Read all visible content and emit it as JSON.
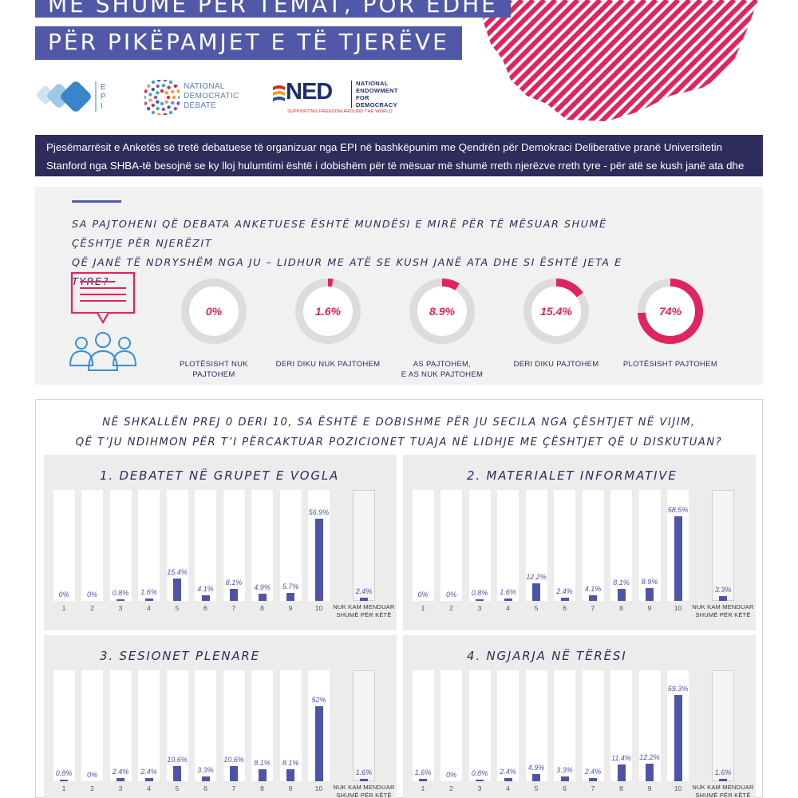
{
  "header": {
    "title_line1": "MË SHUMË PËR TEMAT, POR EDHE",
    "title_line2": "PËR PIKËPAMJET E TË TJERËVE"
  },
  "logos": {
    "epi": "EPI",
    "national_debate": [
      "NATIONAL",
      "DEMOCRATIC",
      "DEBATE"
    ],
    "ned": "NED",
    "ned_name": [
      "NATIONAL",
      "ENDOWMENT",
      "FOR",
      "DEMOCRACY"
    ],
    "ned_tagline": "SUPPORTING FREEDOM AROUND THE WORLD"
  },
  "intro": "Pjesëmarrësit e Anketës së tretë debatuese të organizuar nga EPI në bashkëpunim me Qendrën për Demokraci Deliberative pranë Universitetin Stanford nga SHBA-të besojnë se ky lloj hulumtimi është i dobishëm për të mësuar më shumë rreth njerëzve rreth tyre - për atë se kush janë ata dhe si është jeta e tyre.",
  "question1": {
    "line1": "SA PAJTOHENI QË DEBATA ANKETUESE ËSHTË MUNDËSI E MIRË PËR TË MËSUAR SHUMË ÇËSHTJE PËR NJERËZIT",
    "line2": "QË JANË TË NDRYSHËM NGA JU – LIDHUR ME ATË SE KUSH JANË ATA DHE SI ËSHTË JETA E TYRE?"
  },
  "question2": {
    "line1": "NË SHKALLËN PREJ 0 DERI 10, SA ËSHTË E DOBISHME PËR JU SECILA NGA ÇËSHTJET NË VIJIM,",
    "line2": "QË T’JU NDIHMON PËR T’I PËRCAKTUAR POZICIONET TUAJA NË LIDHJE ME ÇËSHTJET QË U DISKUTUAN?"
  },
  "colors": {
    "accent": "#e0245e",
    "bar": "#4e54a8",
    "navy": "#2e2c5a",
    "banner": "#5258a8"
  },
  "chart_data": [
    {
      "type": "pie",
      "title": "",
      "categories": [
        "PLOTËSISHT NUK PAJTOHEM",
        "DERI DIKU NUK PAJTOHEM",
        "AS PAJTOHEM, E AS NUK PAJTOHEM",
        "DERI DIKU PAJTOHEM",
        "PLOTËSISHT PAJTOHEM"
      ],
      "values": [
        0,
        1.6,
        8.9,
        15.4,
        74
      ],
      "labels": [
        "0%",
        "1.6%",
        "8.9%",
        "15.4%",
        "74%"
      ],
      "caption_lines": [
        [
          "PLOTËSISHT NUK PAJTOHEM"
        ],
        [
          "DERI DIKU NUK PAJTOHEM"
        ],
        [
          "AS PAJTOHEM,",
          "E AS NUK PAJTOHEM"
        ],
        [
          "DERI DIKU PAJTOHEM"
        ],
        [
          "PLOTËSISHT PAJTOHEM"
        ]
      ]
    },
    {
      "type": "bar",
      "title": "1. DEBATET NË GRUPET E VOGLA",
      "categories": [
        "1",
        "2",
        "3",
        "4",
        "5",
        "6",
        "7",
        "8",
        "9",
        "10"
      ],
      "values": [
        0,
        0,
        0.8,
        1.6,
        15.4,
        4.1,
        8.1,
        4.9,
        5.7,
        56.9
      ],
      "labels": [
        "0%",
        "0%",
        "0.8%",
        "1.6%",
        "15.4%",
        "4.1%",
        "8.1%",
        "4.9%",
        "5.7%",
        "56.9%"
      ],
      "no_opinion": {
        "label": [
          "NUK KAM MENDUAR",
          "SHUMË PËR KËTË"
        ],
        "value": 2.4,
        "text": "2.4%"
      }
    },
    {
      "type": "bar",
      "title": "2. MATERIALET INFORMATIVE",
      "categories": [
        "1",
        "2",
        "3",
        "4",
        "5",
        "6",
        "7",
        "8",
        "9",
        "10"
      ],
      "values": [
        0,
        0,
        0.8,
        1.6,
        12.2,
        2.4,
        4.1,
        8.1,
        8.9,
        58.5
      ],
      "labels": [
        "0%",
        "0%",
        "0.8%",
        "1.6%",
        "12.2%",
        "2.4%",
        "4.1%",
        "8.1%",
        "8.9%",
        "58.5%"
      ],
      "no_opinion": {
        "label": [
          "NUK KAM MENDUAR",
          "SHUMË PËR KËTË"
        ],
        "value": 3.3,
        "text": "3.3%"
      }
    },
    {
      "type": "bar",
      "title": "3. SESIONET PLENARE",
      "categories": [
        "1",
        "2",
        "3",
        "4",
        "5",
        "6",
        "7",
        "8",
        "9",
        "10"
      ],
      "values": [
        0.8,
        0,
        2.4,
        2.4,
        10.6,
        3.3,
        10.6,
        8.1,
        8.1,
        52
      ],
      "labels": [
        "0.8%",
        "0%",
        "2.4%",
        "2.4%",
        "10.6%",
        "3.3%",
        "10.6%",
        "8.1%",
        "8.1%",
        "52%"
      ],
      "no_opinion": {
        "label": [
          "NUK KAM MENDUAR",
          "SHUMË PËR KËTË"
        ],
        "value": 1.6,
        "text": "1.6%"
      }
    },
    {
      "type": "bar",
      "title": "4. NGJARJA NË TËRËSI",
      "categories": [
        "1",
        "2",
        "3",
        "4",
        "5",
        "6",
        "7",
        "8",
        "9",
        "10"
      ],
      "values": [
        1.6,
        0,
        0.8,
        2.4,
        4.9,
        3.3,
        2.4,
        11.4,
        12.2,
        59.3
      ],
      "labels": [
        "1.6%",
        "0%",
        "0.8%",
        "2.4%",
        "4.9%",
        "3.3%",
        "2.4%",
        "11.4%",
        "12.2%",
        "59.3%"
      ],
      "no_opinion": {
        "label": [
          "NUK KAM MENDUAR",
          "SHUMË PËR KËTË"
        ],
        "value": 1.6,
        "text": "1.6%"
      }
    }
  ]
}
